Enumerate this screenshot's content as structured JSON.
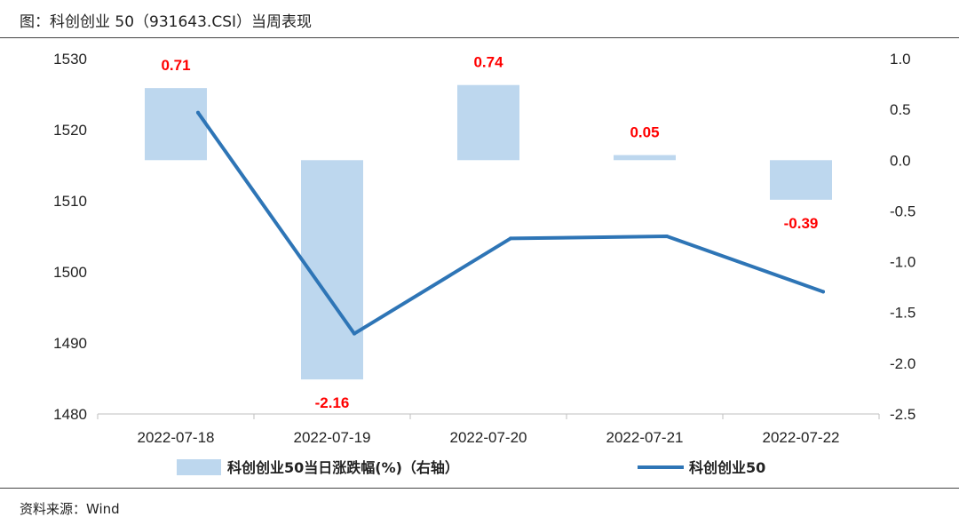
{
  "header": {
    "title": "图：科创创业 50（931643.CSI）当周表现"
  },
  "footer": {
    "source": "资料来源：Wind"
  },
  "chart_data": {
    "type": "bar+line",
    "categories": [
      "2022-07-18",
      "2022-07-19",
      "2022-07-20",
      "2022-07-21",
      "2022-07-22"
    ],
    "series": [
      {
        "name": "科创创业50当日涨跌幅(%)（右轴）",
        "type": "bar",
        "axis": "right",
        "values": [
          0.71,
          -2.16,
          0.74,
          0.05,
          -0.39
        ],
        "labels": [
          "0.71",
          "-2.16",
          "0.74",
          "0.05",
          "-0.39"
        ],
        "color": "#bdd7ee"
      },
      {
        "name": "科创创业50",
        "type": "line",
        "axis": "left",
        "values": [
          1522.4,
          1491.3,
          1504.7,
          1505.0,
          1497.2
        ],
        "color": "#2e75b6"
      }
    ],
    "y_left": {
      "ylim": [
        1480,
        1530
      ],
      "ticks": [
        "1480",
        "1490",
        "1500",
        "1510",
        "1520",
        "1530"
      ]
    },
    "y_right": {
      "ylim": [
        -2.5,
        1.0
      ],
      "ticks": [
        "-2.5",
        "-2.0",
        "-1.5",
        "-1.0",
        "-0.5",
        "0.0",
        "0.5",
        "1.0"
      ]
    },
    "grid": false,
    "legend": "bottom"
  }
}
